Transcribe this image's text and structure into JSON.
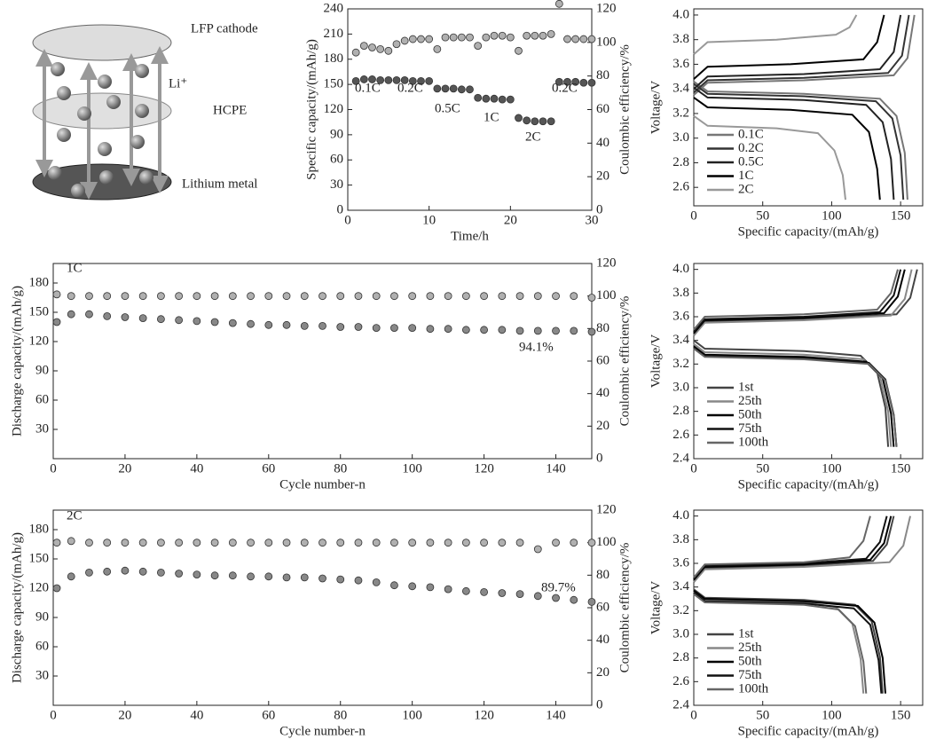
{
  "diagram": {
    "labels": [
      "LFP cathode",
      "HCPE",
      "Lithium metal"
    ],
    "ion": "Li⁺"
  },
  "chart_data": [
    {
      "type": "scatter",
      "xlabel": "Time/h",
      "ylabel": "Specific capacity/(mAh/g)",
      "y2label": "Coulombic efficiency/%",
      "xlim": [
        0,
        30
      ],
      "xticks": [
        0,
        10,
        20,
        30
      ],
      "ylim": [
        0,
        240
      ],
      "yticks": [
        0,
        30,
        60,
        90,
        120,
        150,
        180,
        210,
        240
      ],
      "y2lim": [
        0,
        120
      ],
      "y2ticks": [
        0,
        20,
        40,
        60,
        80,
        100,
        120
      ],
      "annotations": [
        "0.1C",
        "0.2C",
        "0.5C",
        "1C",
        "2C",
        "0.2C"
      ],
      "x": [
        1,
        2,
        3,
        4,
        5,
        6,
        7,
        8,
        9,
        10,
        11,
        12,
        13,
        14,
        15,
        16,
        17,
        18,
        19,
        20,
        21,
        22,
        23,
        24,
        25,
        26,
        27,
        28,
        29,
        30
      ],
      "series": [
        {
          "color": "#555555",
          "values": [
            154,
            156,
            156,
            155,
            155,
            155,
            155,
            154,
            154,
            154,
            145,
            145,
            145,
            144,
            144,
            134,
            133,
            133,
            132,
            132,
            110,
            107,
            106,
            106,
            106,
            153,
            153,
            153,
            152,
            152
          ]
        },
        {
          "color": "#b0b0b0",
          "axis": "y2",
          "values": [
            94,
            98,
            97,
            96,
            95,
            99,
            101,
            102,
            102,
            102,
            96,
            103,
            103,
            103,
            103,
            98,
            103,
            104,
            104,
            103,
            95,
            104,
            104,
            104,
            105,
            123,
            102,
            102,
            102,
            102
          ]
        }
      ]
    },
    {
      "type": "line",
      "xlabel": "Specific capacity/(mAh/g)",
      "ylabel": "Voltage/V",
      "legend": "lower left",
      "xlim": [
        0,
        166
      ],
      "xticks": [
        0,
        50,
        100,
        150
      ],
      "ylim": [
        2.45,
        4.05
      ],
      "yticks": [
        2.6,
        2.8,
        {
          "value": 3,
          "label": "3.0"
        },
        3.2,
        3.4,
        3.6,
        3.8,
        {
          "value": 4,
          "label": "4.0"
        }
      ],
      "series": [
        {
          "name": "0.1C",
          "color": "#777777",
          "x": [
            0,
            10,
            80,
            145,
            155,
            160,
            null,
            0,
            10,
            80,
            135,
            147,
            153,
            155
          ],
          "values": [
            3.35,
            3.45,
            3.47,
            3.51,
            3.65,
            4.0,
            null,
            3.46,
            3.38,
            3.36,
            3.32,
            3.18,
            2.88,
            2.5
          ]
        },
        {
          "name": "0.2C",
          "color": "#333333",
          "x": [
            0,
            10,
            80,
            141,
            151,
            156,
            null,
            0,
            10,
            80,
            132,
            144,
            150,
            152
          ],
          "values": [
            3.37,
            3.47,
            3.49,
            3.53,
            3.67,
            4.0,
            null,
            3.44,
            3.36,
            3.34,
            3.3,
            3.16,
            2.86,
            2.5
          ]
        },
        {
          "name": "0.5C",
          "color": "#222222",
          "x": [
            0,
            10,
            80,
            135,
            145,
            150,
            null,
            0,
            10,
            80,
            125,
            137,
            143,
            145
          ],
          "values": [
            3.4,
            3.5,
            3.52,
            3.56,
            3.7,
            4.0,
            null,
            3.41,
            3.33,
            3.31,
            3.27,
            3.13,
            2.83,
            2.5
          ]
        },
        {
          "name": "1C",
          "color": "#000000",
          "x": [
            0,
            10,
            70,
            123,
            133,
            138,
            null,
            0,
            10,
            70,
            115,
            127,
            133,
            135
          ],
          "values": [
            3.48,
            3.58,
            3.6,
            3.64,
            3.78,
            4.0,
            null,
            3.33,
            3.25,
            3.23,
            3.19,
            3.05,
            2.75,
            2.5
          ]
        },
        {
          "name": "2C",
          "color": "#999999",
          "x": [
            0,
            10,
            60,
            103,
            113,
            118,
            null,
            0,
            10,
            60,
            90,
            102,
            108,
            110
          ],
          "values": [
            3.68,
            3.78,
            3.8,
            3.84,
            3.9,
            4.0,
            null,
            3.18,
            3.1,
            3.08,
            3.04,
            2.9,
            2.7,
            2.5
          ]
        }
      ]
    },
    {
      "type": "scatter",
      "xlabel": "Cycle number-n",
      "ylabel": "Discharge capacity/(mAh/g)",
      "y2label": "Coulombic efficiency/%",
      "xlim": [
        0,
        150
      ],
      "xticks": [
        0,
        20,
        40,
        60,
        80,
        100,
        120,
        140
      ],
      "ylim": [
        0,
        200
      ],
      "yticks": [
        30,
        60,
        90,
        120,
        150,
        180
      ],
      "y2lim": [
        0,
        120
      ],
      "y2ticks": [
        0,
        20,
        40,
        60,
        80,
        100,
        120
      ],
      "annotations": [
        "1C",
        "94.1%"
      ],
      "x": [
        1,
        5,
        10,
        15,
        20,
        25,
        30,
        35,
        40,
        45,
        50,
        55,
        60,
        65,
        70,
        75,
        80,
        85,
        90,
        95,
        100,
        105,
        110,
        115,
        120,
        125,
        130,
        135,
        140,
        145,
        150
      ],
      "series": [
        {
          "color": "#888888",
          "values": [
            140,
            148,
            148,
            146,
            145,
            144,
            143,
            142,
            141,
            140,
            139,
            138,
            137,
            137,
            136,
            136,
            135,
            135,
            134,
            134,
            134,
            133,
            133,
            132,
            132,
            132,
            131,
            131,
            131,
            131,
            130
          ]
        },
        {
          "color": "#b0b0b0",
          "axis": "y2",
          "values": [
            101,
            100,
            100,
            100,
            100,
            100,
            100,
            100,
            100,
            100,
            100,
            100,
            100,
            100,
            100,
            100,
            100,
            100,
            100,
            100,
            100,
            100,
            100,
            100,
            100,
            100,
            100,
            100,
            100,
            100,
            99
          ]
        }
      ]
    },
    {
      "type": "line",
      "xlabel": "Specific capacity/(mAh/g)",
      "ylabel": "Voltage/V",
      "legend": "lower left",
      "xlim": [
        0,
        166
      ],
      "xticks": [
        0,
        50,
        100,
        150
      ],
      "ylim": [
        2.4,
        4.05
      ],
      "yticks": [
        2.4,
        2.6,
        2.8,
        {
          "value": 3,
          "label": "3.0"
        },
        3.2,
        3.4,
        3.6,
        3.8,
        {
          "value": 4,
          "label": "4.0"
        }
      ],
      "series": [
        {
          "name": "1st",
          "color": "#444444",
          "x": [
            0,
            8,
            80,
            147,
            157,
            162,
            null,
            0,
            8,
            80,
            121,
            133,
            139,
            141
          ],
          "values": [
            3.45,
            3.56,
            3.58,
            3.62,
            3.76,
            4.0,
            null,
            3.4,
            3.33,
            3.31,
            3.27,
            3.13,
            2.83,
            2.5
          ]
        },
        {
          "name": "25th",
          "color": "#888888",
          "x": [
            0,
            8,
            80,
            143,
            153,
            158,
            null,
            0,
            8,
            80,
            123,
            135,
            141,
            143
          ],
          "values": [
            3.44,
            3.55,
            3.57,
            3.61,
            3.75,
            4.0,
            null,
            3.37,
            3.3,
            3.28,
            3.24,
            3.1,
            2.8,
            2.5
          ]
        },
        {
          "name": "50th",
          "color": "#000000",
          "x": [
            0,
            8,
            80,
            138,
            148,
            153,
            null,
            0,
            8,
            80,
            125,
            137,
            143,
            145
          ],
          "values": [
            3.46,
            3.57,
            3.59,
            3.63,
            3.77,
            4.0,
            null,
            3.35,
            3.28,
            3.26,
            3.22,
            3.08,
            2.78,
            2.5
          ]
        },
        {
          "name": "75th",
          "color": "#111111",
          "x": [
            0,
            8,
            80,
            135,
            145,
            150,
            null,
            0,
            8,
            80,
            127,
            139,
            145,
            147
          ],
          "values": [
            3.47,
            3.58,
            3.6,
            3.64,
            3.78,
            4.0,
            null,
            3.34,
            3.27,
            3.25,
            3.21,
            3.07,
            2.77,
            2.5
          ]
        },
        {
          "name": "100th",
          "color": "#666666",
          "x": [
            0,
            8,
            80,
            133,
            143,
            148,
            null,
            0,
            8,
            80,
            127,
            139,
            145,
            147
          ],
          "values": [
            3.49,
            3.6,
            3.62,
            3.66,
            3.8,
            4.0,
            null,
            3.33,
            3.26,
            3.24,
            3.2,
            3.06,
            2.76,
            2.5
          ]
        }
      ]
    },
    {
      "type": "scatter",
      "xlabel": "Cycle number-n",
      "ylabel": "Discharge capacity/(mAh/g)",
      "y2label": "Coulombic efficiency/%",
      "xlim": [
        0,
        150
      ],
      "xticks": [
        0,
        20,
        40,
        60,
        80,
        100,
        120,
        140
      ],
      "ylim": [
        0,
        200
      ],
      "yticks": [
        30,
        60,
        90,
        120,
        150,
        180
      ],
      "y2lim": [
        0,
        120
      ],
      "y2ticks": [
        0,
        20,
        40,
        60,
        80,
        100,
        120
      ],
      "annotations": [
        "2C",
        "89.7%"
      ],
      "x": [
        1,
        5,
        10,
        15,
        20,
        25,
        30,
        35,
        40,
        45,
        50,
        55,
        60,
        65,
        70,
        75,
        80,
        85,
        90,
        95,
        100,
        105,
        110,
        115,
        120,
        125,
        130,
        135,
        140,
        145,
        150
      ],
      "series": [
        {
          "color": "#888888",
          "values": [
            120,
            132,
            136,
            137,
            138,
            137,
            136,
            135,
            134,
            133,
            133,
            132,
            132,
            131,
            131,
            130,
            129,
            128,
            126,
            123,
            122,
            121,
            119,
            117,
            116,
            115,
            114,
            112,
            110,
            108,
            106
          ]
        },
        {
          "color": "#b0b0b0",
          "axis": "y2",
          "values": [
            100,
            101,
            100,
            100,
            100,
            100,
            100,
            100,
            100,
            100,
            100,
            100,
            100,
            100,
            100,
            100,
            100,
            100,
            100,
            100,
            100,
            100,
            100,
            100,
            100,
            100,
            100,
            96,
            100,
            100,
            100
          ]
        }
      ]
    },
    {
      "type": "line",
      "xlabel": "Specific capacity/(mAh/g)",
      "ylabel": "Voltage/V",
      "legend": "lower left",
      "xlim": [
        0,
        166
      ],
      "xticks": [
        0,
        50,
        100,
        150
      ],
      "ylim": [
        2.4,
        4.05
      ],
      "yticks": [
        2.4,
        2.6,
        2.8,
        {
          "value": 3,
          "label": "3.0"
        },
        3.2,
        3.4,
        3.6,
        3.8,
        {
          "value": 4,
          "label": "4.0"
        }
      ],
      "series": [
        {
          "name": "1st",
          "color": "#444444",
          "x": [
            0,
            8,
            80,
            130,
            140,
            145,
            null,
            0,
            8,
            80,
            117,
            129,
            135,
            137
          ],
          "values": [
            3.45,
            3.56,
            3.58,
            3.62,
            3.76,
            4.0,
            null,
            3.38,
            3.31,
            3.29,
            3.25,
            3.11,
            2.81,
            2.5
          ]
        },
        {
          "name": "25th",
          "color": "#888888",
          "x": [
            0,
            8,
            80,
            142,
            152,
            157,
            null,
            0,
            8,
            80,
            103,
            115,
            121,
            123
          ],
          "values": [
            3.44,
            3.55,
            3.57,
            3.61,
            3.75,
            4.0,
            null,
            3.36,
            3.29,
            3.27,
            3.23,
            3.09,
            2.79,
            2.5
          ]
        },
        {
          "name": "50th",
          "color": "#000000",
          "x": [
            0,
            8,
            80,
            128,
            138,
            143,
            null,
            0,
            8,
            80,
            119,
            131,
            137,
            139
          ],
          "values": [
            3.46,
            3.57,
            3.59,
            3.63,
            3.77,
            4.0,
            null,
            3.37,
            3.3,
            3.28,
            3.24,
            3.1,
            2.8,
            2.5
          ]
        },
        {
          "name": "75th",
          "color": "#111111",
          "x": [
            0,
            8,
            80,
            125,
            135,
            140,
            null,
            0,
            8,
            80,
            116,
            128,
            134,
            136
          ],
          "values": [
            3.47,
            3.58,
            3.6,
            3.64,
            3.78,
            4.0,
            null,
            3.35,
            3.28,
            3.26,
            3.22,
            3.08,
            2.78,
            2.5
          ]
        },
        {
          "name": "100th",
          "color": "#666666",
          "x": [
            0,
            8,
            80,
            113,
            123,
            128,
            null,
            0,
            8,
            80,
            105,
            117,
            123,
            125
          ],
          "values": [
            3.48,
            3.59,
            3.61,
            3.65,
            3.79,
            4.0,
            null,
            3.34,
            3.27,
            3.25,
            3.21,
            3.07,
            2.77,
            2.5
          ]
        }
      ]
    }
  ]
}
